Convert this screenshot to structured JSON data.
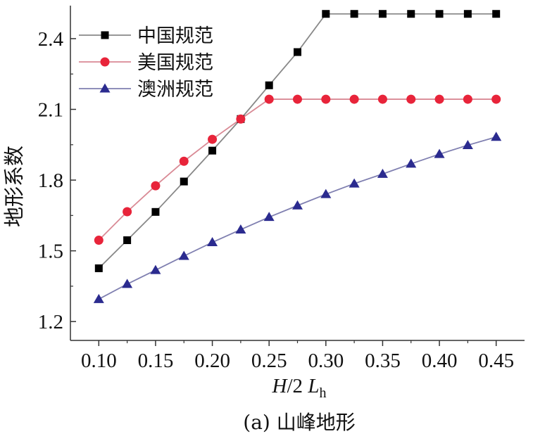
{
  "chart_data": {
    "type": "line",
    "xlabel": {
      "main": "H",
      "middle": "/2 ",
      "second": "L",
      "subscript": "h"
    },
    "ylabel": "地形系数",
    "caption": "(a) 山峰地形",
    "xlim": [
      0.075,
      0.475
    ],
    "ylim": [
      1.12,
      2.54
    ],
    "x_ticks": [
      "0.10",
      "0.15",
      "0.20",
      "0.25",
      "0.30",
      "0.35",
      "0.40",
      "0.45"
    ],
    "y_ticks": [
      "1.2",
      "1.5",
      "1.8",
      "2.1",
      "2.4"
    ],
    "x": [
      0.1,
      0.125,
      0.15,
      0.175,
      0.2,
      0.225,
      0.25,
      0.275,
      0.3,
      0.325,
      0.35,
      0.375,
      0.4,
      0.425,
      0.45
    ],
    "legend_position": "top-left",
    "series": [
      {
        "name": "中国规范",
        "color": "#000000",
        "line_color": "#888888",
        "marker": "square",
        "values": [
          1.426,
          1.545,
          1.665,
          1.794,
          1.925,
          2.059,
          2.202,
          2.343,
          2.505,
          2.505,
          2.505,
          2.505,
          2.505,
          2.505,
          2.505
        ]
      },
      {
        "name": "美国规范",
        "color": "#e8243a",
        "line_color": "#d98a95",
        "marker": "circle",
        "values": [
          1.545,
          1.666,
          1.776,
          1.88,
          1.973,
          2.059,
          2.143,
          2.143,
          2.143,
          2.143,
          2.143,
          2.143,
          2.143,
          2.143,
          2.143
        ]
      },
      {
        "name": "澳洲规范",
        "color": "#2b2b8f",
        "line_color": "#7f7fb0",
        "marker": "triangle",
        "values": [
          1.295,
          1.359,
          1.418,
          1.478,
          1.536,
          1.59,
          1.643,
          1.692,
          1.74,
          1.785,
          1.826,
          1.869,
          1.91,
          1.948,
          1.983
        ]
      }
    ]
  }
}
